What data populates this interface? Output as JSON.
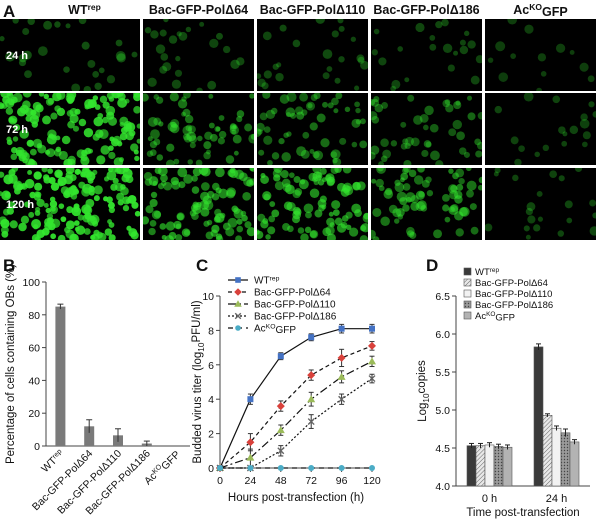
{
  "panels": {
    "a": "A",
    "b": "B",
    "c": "C",
    "d": "D"
  },
  "micrographs": {
    "columns": [
      {
        "base": "WT",
        "sup": "rep",
        "tail": ""
      },
      {
        "base": "Bac-GFP-PolΔ64",
        "sup": "",
        "tail": ""
      },
      {
        "base": "Bac-GFP-PolΔ110",
        "sup": "",
        "tail": ""
      },
      {
        "base": "Bac-GFP-PolΔ186",
        "sup": "",
        "tail": ""
      },
      {
        "base": "Ac",
        "sup": "KO",
        "tail": "GFP"
      }
    ],
    "rows": [
      "24 h",
      "72 h",
      "120 h"
    ],
    "brightness": [
      [
        0.12,
        0.1,
        0.1,
        0.08,
        0.03
      ],
      [
        0.85,
        0.35,
        0.3,
        0.25,
        0.06
      ],
      [
        0.95,
        0.55,
        0.55,
        0.4,
        0.08
      ]
    ],
    "colors": {
      "cell": "#33e62e",
      "background": "#000000"
    }
  },
  "chart_data": [
    {
      "id": "B",
      "type": "bar",
      "ylabel": "Percentage of cells containing OBs (%)",
      "ylim": [
        0,
        100
      ],
      "yticks": [
        "0",
        "20",
        "40",
        "60",
        "80",
        "100"
      ],
      "categories": [
        {
          "base": "WT",
          "sup": "rep",
          "tail": ""
        },
        {
          "base": "Bac-GFP-PolΔ64",
          "sup": "",
          "tail": ""
        },
        {
          "base": "Bac-GFP-PolΔ110",
          "sup": "",
          "tail": ""
        },
        {
          "base": "Bac-GFP-PolΔ186",
          "sup": "",
          "tail": ""
        },
        {
          "base": "Ac",
          "sup": "KO",
          "tail": "GFP"
        }
      ],
      "values": [
        85,
        12,
        6.5,
        1.5,
        0
      ],
      "errors": [
        1.5,
        4,
        4,
        1.5,
        0
      ],
      "color": "#7a7a7a"
    },
    {
      "id": "C",
      "type": "line",
      "xlabel": "Hours post-transfection (h)",
      "ylabel": {
        "pre": "Budded virus titer (log",
        "sub": "10",
        "post": "PFU/ml)"
      },
      "x": [
        0,
        24,
        48,
        72,
        96,
        120
      ],
      "xticks": [
        "0",
        "24",
        "48",
        "72",
        "96",
        "120"
      ],
      "ylim": [
        0,
        10
      ],
      "yticks": [
        "0",
        "2",
        "4",
        "6",
        "8",
        "10"
      ],
      "series": [
        {
          "name": {
            "base": "WT",
            "sup": "rep",
            "tail": ""
          },
          "values": [
            0,
            4.0,
            6.5,
            7.6,
            8.1,
            8.1
          ],
          "errors": [
            0,
            0.3,
            0.2,
            0.2,
            0.25,
            0.25
          ],
          "color": "#4472c4",
          "dash": "",
          "marker": "square"
        },
        {
          "name": {
            "base": "Bac-GFP-PolΔ64",
            "sup": "",
            "tail": ""
          },
          "values": [
            0,
            1.5,
            3.6,
            5.4,
            6.4,
            7.1
          ],
          "errors": [
            0,
            0.5,
            0.3,
            0.3,
            0.5,
            0.25
          ],
          "color": "#d9413b",
          "dash": "4,3",
          "marker": "diamond"
        },
        {
          "name": {
            "base": "Bac-GFP-PolΔ110",
            "sup": "",
            "tail": ""
          },
          "values": [
            0,
            0.6,
            2.2,
            4.0,
            5.3,
            6.2
          ],
          "errors": [
            0,
            0.5,
            0.3,
            0.4,
            0.35,
            0.3
          ],
          "color": "#9bbb59",
          "dash": "8,3,2,3",
          "marker": "triangle"
        },
        {
          "name": {
            "base": "Bac-GFP-PolΔ186",
            "sup": "",
            "tail": ""
          },
          "values": [
            0,
            0,
            1.0,
            2.7,
            4.0,
            5.2
          ],
          "errors": [
            0,
            0,
            0.3,
            0.4,
            0.3,
            0.25
          ],
          "color": "#666666",
          "dash": "2,2",
          "marker": "x"
        },
        {
          "name": {
            "base": "Ac",
            "sup": "KO",
            "tail": "GFP"
          },
          "values": [
            0,
            0,
            0,
            0,
            0,
            0
          ],
          "errors": [
            0,
            0,
            0,
            0,
            0,
            0
          ],
          "color": "#4bacc6",
          "dash": "5,4",
          "marker": "circle"
        }
      ]
    },
    {
      "id": "D",
      "type": "bar",
      "xlabel": "Time post-transfection",
      "ylabel": {
        "pre": "Log",
        "sub": "10",
        "post": "copies"
      },
      "ylim": [
        4.0,
        6.5
      ],
      "yticks": [
        "4.0",
        "4.5",
        "5.0",
        "5.5",
        "6.0",
        "6.5"
      ],
      "categories": [
        "0 h",
        "24 h"
      ],
      "series": [
        {
          "name": {
            "base": "WT",
            "sup": "rep",
            "tail": ""
          },
          "values": [
            4.53,
            5.83
          ],
          "errors": [
            0.03,
            0.04
          ],
          "fill": "#3a3a3a",
          "pattern": ""
        },
        {
          "name": {
            "base": "Bac-GFP-PolΔ64",
            "sup": "",
            "tail": ""
          },
          "values": [
            4.53,
            4.93
          ],
          "errors": [
            0.03,
            0.02
          ],
          "fill": "#d9d9d9",
          "pattern": "hatch"
        },
        {
          "name": {
            "base": "Bac-GFP-PolΔ110",
            "sup": "",
            "tail": ""
          },
          "values": [
            4.54,
            4.76
          ],
          "errors": [
            0.03,
            0.03
          ],
          "fill": "#f2f2f2",
          "pattern": ""
        },
        {
          "name": {
            "base": "Bac-GFP-PolΔ186",
            "sup": "",
            "tail": ""
          },
          "values": [
            4.52,
            4.7
          ],
          "errors": [
            0.03,
            0.05
          ],
          "fill": "#8c8c8c",
          "pattern": "dots"
        },
        {
          "name": {
            "base": "Ac",
            "sup": "KO",
            "tail": "GFP"
          },
          "values": [
            4.51,
            4.58
          ],
          "errors": [
            0.03,
            0.03
          ],
          "fill": "#b3b3b3",
          "pattern": ""
        }
      ]
    }
  ]
}
